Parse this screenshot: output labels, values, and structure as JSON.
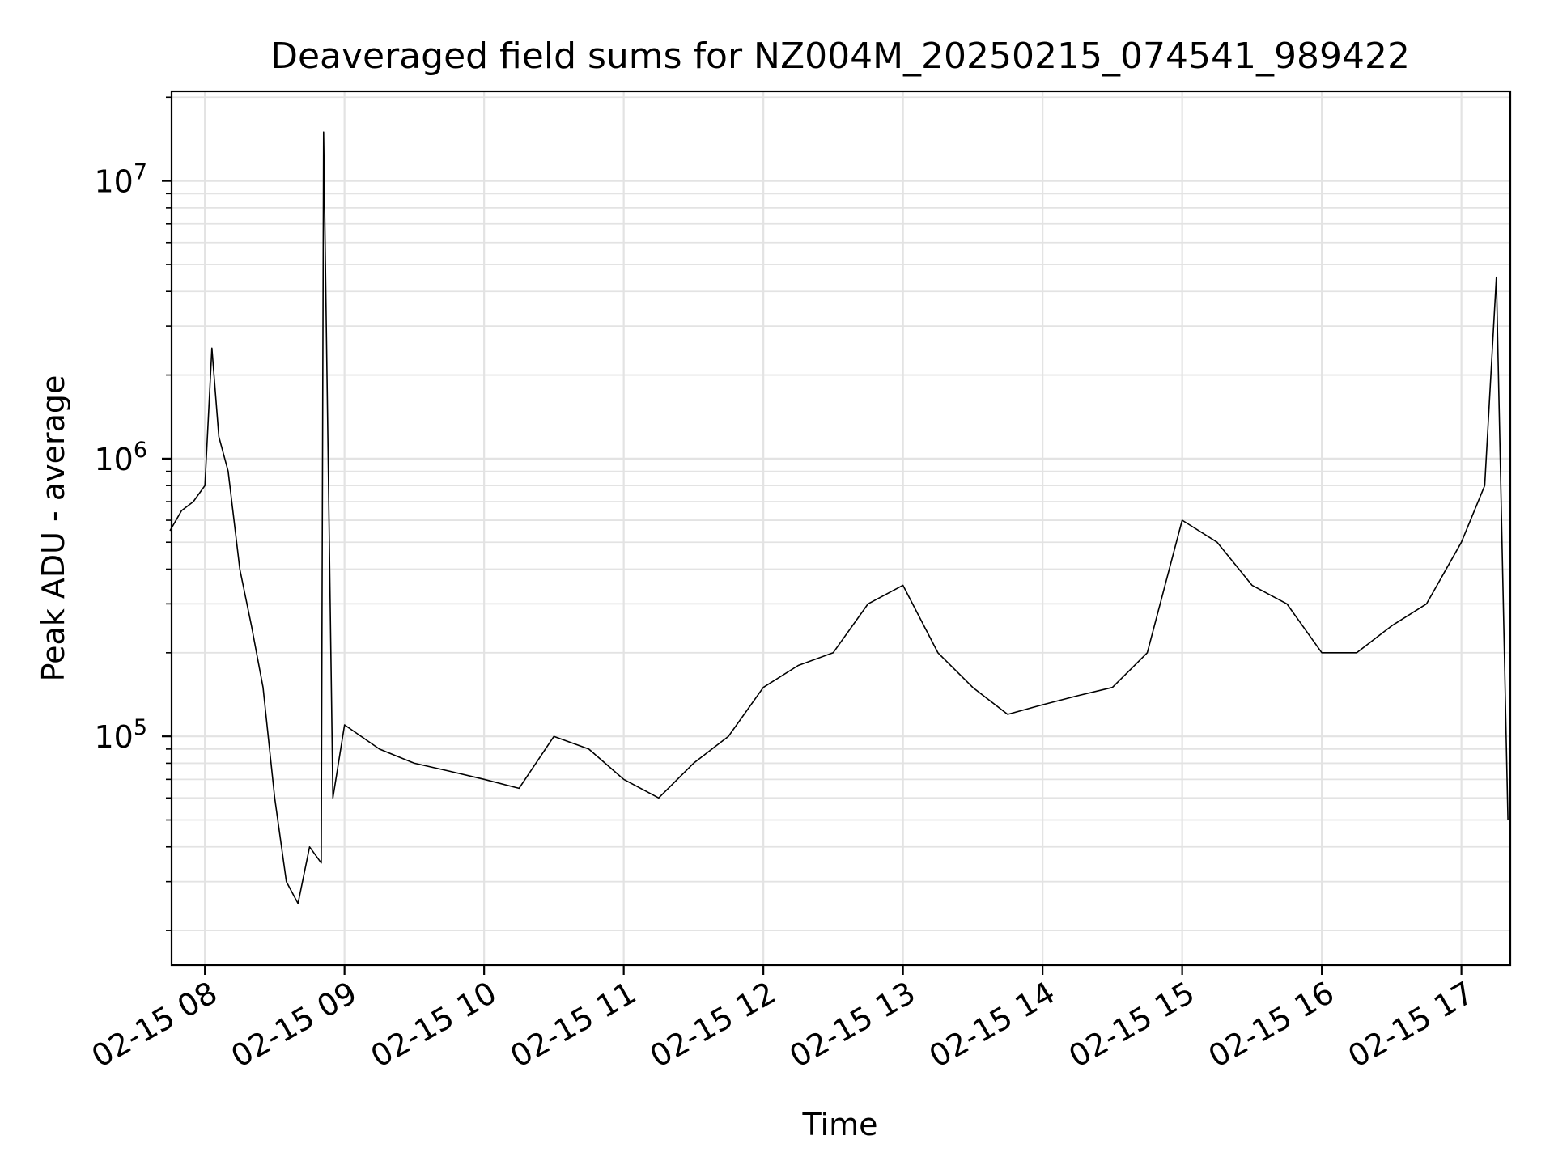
{
  "chart_data": {
    "type": "line",
    "title": "Deaveraged field sums for NZ004M_20250215_074541_989422",
    "xlabel": "Time",
    "ylabel": "Peak ADU - average",
    "y_scale": "log",
    "ylim": [
      15000,
      21000000
    ],
    "xlim": [
      "2025-02-15 07:45:41",
      "2025-02-15 17:21:00"
    ],
    "grid": true,
    "line_color": "#000000",
    "grid_color": "#e3e3e3",
    "x_tick_labels": [
      "02-15 08",
      "02-15 09",
      "02-15 10",
      "02-15 11",
      "02-15 12",
      "02-15 13",
      "02-15 14",
      "02-15 15",
      "02-15 16",
      "02-15 17"
    ],
    "x_tick_times": [
      "2025-02-15 08:00",
      "2025-02-15 09:00",
      "2025-02-15 10:00",
      "2025-02-15 11:00",
      "2025-02-15 12:00",
      "2025-02-15 13:00",
      "2025-02-15 14:00",
      "2025-02-15 15:00",
      "2025-02-15 16:00",
      "2025-02-15 17:00"
    ],
    "y_ticks": [
      {
        "value": 100000,
        "base": "10",
        "exp": "5"
      },
      {
        "value": 1000000,
        "base": "10",
        "exp": "6"
      },
      {
        "value": 10000000,
        "base": "10",
        "exp": "7"
      }
    ],
    "series": [
      {
        "x": [
          "2025-02-15 07:45",
          "2025-02-15 07:50",
          "2025-02-15 07:55",
          "2025-02-15 08:00",
          "2025-02-15 08:03",
          "2025-02-15 08:06",
          "2025-02-15 08:10",
          "2025-02-15 08:15",
          "2025-02-15 08:20",
          "2025-02-15 08:25",
          "2025-02-15 08:30",
          "2025-02-15 08:35",
          "2025-02-15 08:40",
          "2025-02-15 08:45",
          "2025-02-15 08:50",
          "2025-02-15 08:51",
          "2025-02-15 08:55",
          "2025-02-15 09:00",
          "2025-02-15 09:15",
          "2025-02-15 09:30",
          "2025-02-15 09:45",
          "2025-02-15 10:00",
          "2025-02-15 10:15",
          "2025-02-15 10:30",
          "2025-02-15 10:45",
          "2025-02-15 11:00",
          "2025-02-15 11:15",
          "2025-02-15 11:30",
          "2025-02-15 11:45",
          "2025-02-15 12:00",
          "2025-02-15 12:15",
          "2025-02-15 12:30",
          "2025-02-15 12:45",
          "2025-02-15 13:00",
          "2025-02-15 13:15",
          "2025-02-15 13:30",
          "2025-02-15 13:45",
          "2025-02-15 14:00",
          "2025-02-15 14:15",
          "2025-02-15 14:30",
          "2025-02-15 14:45",
          "2025-02-15 15:00",
          "2025-02-15 15:15",
          "2025-02-15 15:30",
          "2025-02-15 15:45",
          "2025-02-15 16:00",
          "2025-02-15 16:15",
          "2025-02-15 16:30",
          "2025-02-15 16:45",
          "2025-02-15 17:00",
          "2025-02-15 17:10",
          "2025-02-15 17:15",
          "2025-02-15 17:20"
        ],
        "y": [
          550000,
          650000,
          700000,
          800000,
          2500000,
          1200000,
          900000,
          400000,
          250000,
          150000,
          60000,
          30000,
          25000,
          40000,
          35000,
          15000000,
          60000,
          110000,
          90000,
          80000,
          75000,
          70000,
          65000,
          100000,
          90000,
          70000,
          60000,
          80000,
          100000,
          150000,
          180000,
          200000,
          300000,
          350000,
          200000,
          150000,
          120000,
          130000,
          140000,
          150000,
          200000,
          600000,
          500000,
          350000,
          300000,
          200000,
          200000,
          250000,
          300000,
          500000,
          800000,
          4500000,
          50000
        ]
      }
    ]
  }
}
